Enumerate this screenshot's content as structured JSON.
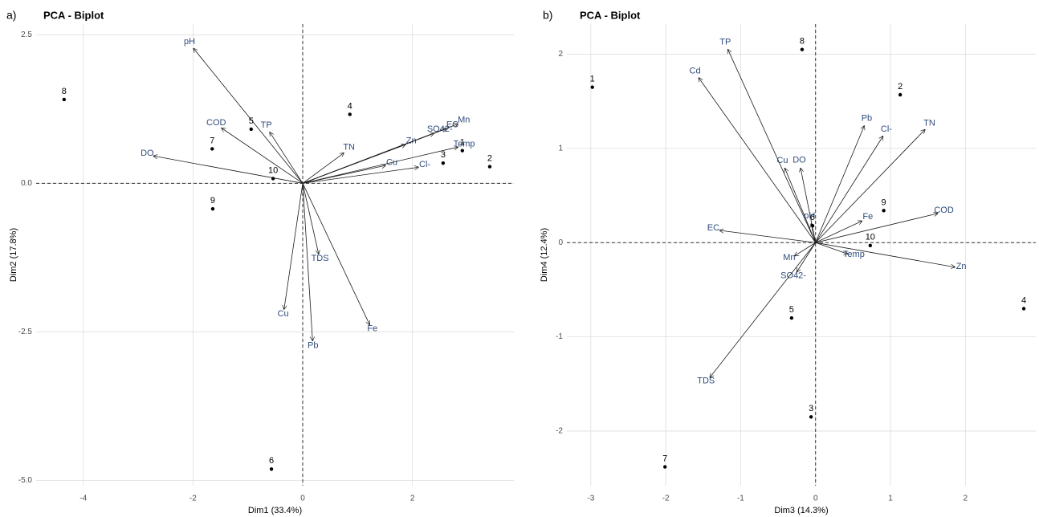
{
  "chart_data": [
    {
      "type": "biplot",
      "panel_label": "a)",
      "title": "PCA - Biplot",
      "x_label": "Dim1 (33.4%)",
      "y_label": "Dim2 (17.8%)",
      "xlim": [
        -4.86,
        3.85
      ],
      "ylim": [
        -5.09,
        2.68
      ],
      "xticks": [
        -4,
        -2,
        0,
        2
      ],
      "yticks": [
        2.5,
        {
          "value": 0,
          "label": "0.0"
        },
        -2.5,
        {
          "value": -5,
          "label": "-5.0"
        }
      ],
      "grid": true,
      "point_color": "#000000",
      "arrow_color": "#1a1a1a",
      "label_color": "#2f4b7c",
      "points": {
        "labels": [
          "8",
          "5",
          "7",
          "4",
          "1",
          "3",
          "2",
          "10",
          "9",
          "6"
        ],
        "x": [
          -4.35,
          -0.94,
          -1.65,
          0.86,
          2.91,
          2.56,
          3.41,
          -0.54,
          -1.64,
          -0.57
        ],
        "y": [
          1.41,
          0.91,
          0.58,
          1.16,
          0.55,
          0.34,
          0.28,
          0.08,
          -0.43,
          -4.81
        ]
      },
      "loadings": {
        "names": [
          "pH",
          "COD",
          "TP",
          "DO",
          "TN",
          "Zn",
          "Cu",
          "Cl-",
          "SO42-",
          "EC",
          "Mn",
          "Temp",
          "TDS",
          "Cu",
          "Pb",
          "Fe"
        ],
        "x": [
          -1.99,
          -1.48,
          -0.6,
          -2.72,
          0.75,
          1.87,
          1.51,
          2.11,
          2.39,
          2.62,
          2.83,
          2.83,
          0.29,
          -0.34,
          0.18,
          1.22
        ],
        "y": [
          2.27,
          0.93,
          0.86,
          0.46,
          0.51,
          0.65,
          0.3,
          0.27,
          0.84,
          0.92,
          1.0,
          0.61,
          -1.19,
          -2.12,
          -2.65,
          -2.38
        ]
      }
    },
    {
      "type": "biplot",
      "panel_label": "b)",
      "title": "PCA - Biplot",
      "x_label": "Dim3 (14.3%)",
      "y_label": "Dim4 (12.4%)",
      "xlim": [
        -3.32,
        2.94
      ],
      "ylim": [
        -2.58,
        2.32
      ],
      "xticks": [
        -3,
        -2,
        -1,
        0,
        1,
        2
      ],
      "yticks": [
        2,
        1,
        0,
        -1,
        -2
      ],
      "grid": true,
      "point_color": "#000000",
      "arrow_color": "#1a1a1a",
      "label_color": "#2f4b7c",
      "points": {
        "labels": [
          "1",
          "8",
          "2",
          "9",
          "10",
          "4",
          "5",
          "3",
          "7",
          "6"
        ],
        "x": [
          -2.98,
          -0.18,
          1.13,
          0.91,
          0.73,
          2.78,
          -0.32,
          -0.06,
          -2.01,
          -0.04
        ],
        "y": [
          1.65,
          2.05,
          1.57,
          0.34,
          -0.03,
          -0.7,
          -0.8,
          -1.85,
          -2.38,
          0.18
        ]
      },
      "loadings": {
        "names": [
          "TP",
          "Cd",
          "Pb",
          "Cl-",
          "TN",
          "Cu",
          "DO",
          "Fe",
          "COD",
          "EC",
          "pH",
          "Mn",
          "Temp",
          "Zn",
          "SO42-",
          "TDS"
        ],
        "x": [
          -1.17,
          -1.56,
          0.65,
          0.9,
          1.46,
          -0.41,
          -0.2,
          0.62,
          1.63,
          -1.28,
          -0.06,
          -0.28,
          0.43,
          1.86,
          -0.25,
          -1.41
        ],
        "y": [
          2.05,
          1.75,
          1.24,
          1.13,
          1.2,
          0.79,
          0.79,
          0.23,
          0.31,
          0.13,
          0.2,
          -0.14,
          -0.12,
          -0.26,
          -0.31,
          -1.43
        ]
      }
    }
  ]
}
